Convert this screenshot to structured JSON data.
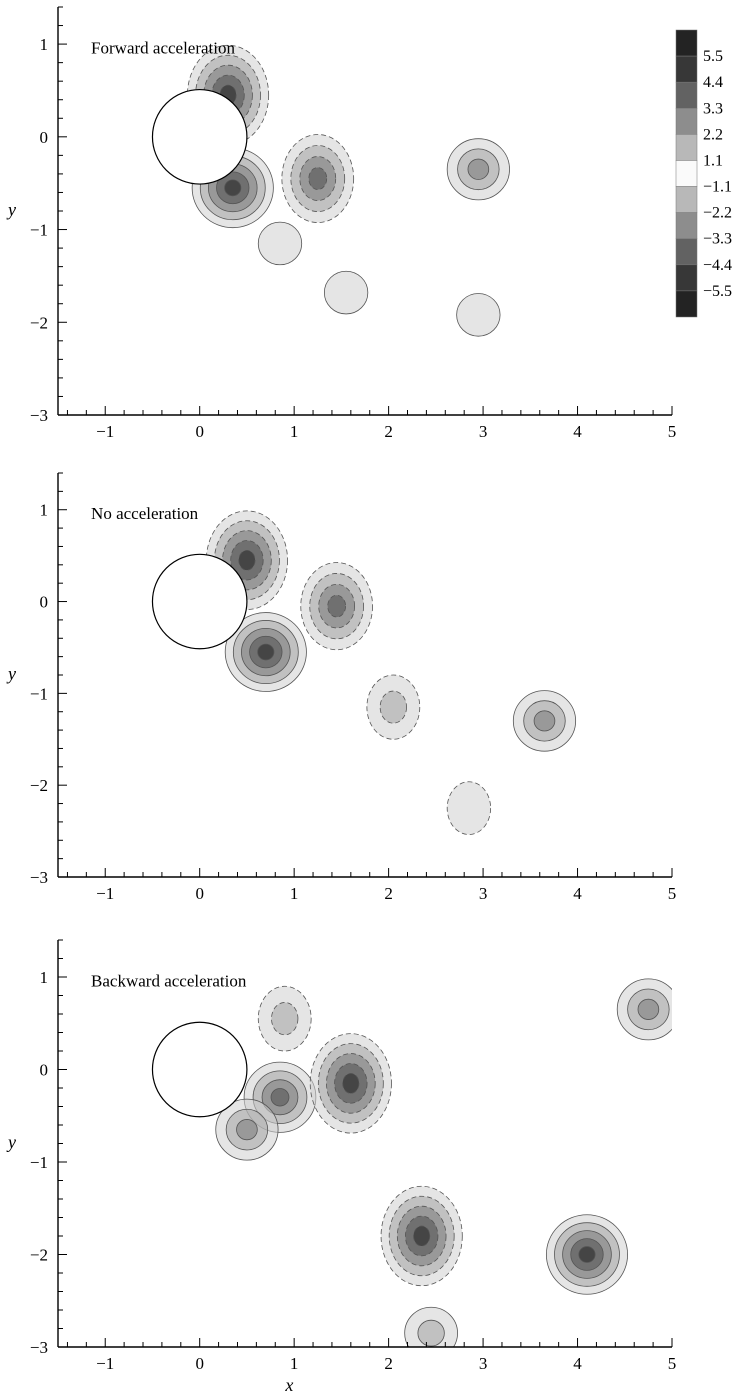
{
  "chart_data": [
    {
      "type": "contour",
      "title": "Forward acceleration",
      "xlabel": "",
      "ylabel": "y",
      "xlim": [
        -1.5,
        5
      ],
      "ylim": [
        -3,
        1.4
      ],
      "xticks": [
        "−1",
        "0",
        "1",
        "2",
        "3",
        "4",
        "5"
      ],
      "yticks": [
        "1",
        "0",
        "−1",
        "−2",
        "−3"
      ],
      "cylinder": {
        "center": [
          0,
          0
        ],
        "radius": 0.5
      },
      "vortices": [
        {
          "x": 0.3,
          "y": 0.45,
          "sign": -1,
          "peak": -5.5
        },
        {
          "x": 0.35,
          "y": -0.55,
          "sign": 1,
          "peak": 5.0
        },
        {
          "x": 1.25,
          "y": -0.45,
          "sign": -1,
          "peak": -4.4
        },
        {
          "x": 2.95,
          "y": -0.35,
          "sign": 1,
          "peak": 3.3
        },
        {
          "x": 1.55,
          "y": -1.68,
          "sign": 1,
          "peak": 1.1
        },
        {
          "x": 0.85,
          "y": -1.15,
          "sign": 1,
          "peak": 1.1
        },
        {
          "x": 2.95,
          "y": -1.92,
          "sign": 1,
          "peak": 1.1
        }
      ]
    },
    {
      "type": "contour",
      "title": "No acceleration",
      "xlabel": "",
      "ylabel": "y",
      "xlim": [
        -1.5,
        5
      ],
      "ylim": [
        -3,
        1.4
      ],
      "xticks": [
        "−1",
        "0",
        "1",
        "2",
        "3",
        "4",
        "5"
      ],
      "yticks": [
        "1",
        "0",
        "−1",
        "−2",
        "−3"
      ],
      "cylinder": {
        "center": [
          0,
          0
        ],
        "radius": 0.5
      },
      "vortices": [
        {
          "x": 0.5,
          "y": 0.45,
          "sign": -1,
          "peak": -5.5
        },
        {
          "x": 1.45,
          "y": -0.05,
          "sign": -1,
          "peak": -4.4
        },
        {
          "x": 0.7,
          "y": -0.55,
          "sign": 1,
          "peak": 5.5
        },
        {
          "x": 2.05,
          "y": -1.15,
          "sign": -1,
          "peak": -2.2
        },
        {
          "x": 3.65,
          "y": -1.3,
          "sign": 1,
          "peak": 3.3
        },
        {
          "x": 2.85,
          "y": -2.25,
          "sign": -1,
          "peak": -1.1
        }
      ]
    },
    {
      "type": "contour",
      "title": "Backward acceleration",
      "xlabel": "x",
      "ylabel": "y",
      "xlim": [
        -1.5,
        5
      ],
      "ylim": [
        -3,
        1.4
      ],
      "xticks": [
        "−1",
        "0",
        "1",
        "2",
        "3",
        "4",
        "5"
      ],
      "yticks": [
        "1",
        "0",
        "−1",
        "−2",
        "−3"
      ],
      "cylinder": {
        "center": [
          0,
          0
        ],
        "radius": 0.5
      },
      "vortices": [
        {
          "x": 0.85,
          "y": -0.3,
          "sign": 1,
          "peak": 4.4
        },
        {
          "x": 0.5,
          "y": -0.65,
          "sign": 1,
          "peak": 3.3
        },
        {
          "x": 0.9,
          "y": 0.55,
          "sign": -1,
          "peak": -2.2
        },
        {
          "x": 1.6,
          "y": -0.15,
          "sign": -1,
          "peak": -5.5
        },
        {
          "x": 2.35,
          "y": -1.8,
          "sign": -1,
          "peak": -5.5
        },
        {
          "x": 4.1,
          "y": -2.0,
          "sign": 1,
          "peak": 5.5
        },
        {
          "x": 4.75,
          "y": 0.65,
          "sign": 1,
          "peak": 3.3
        },
        {
          "x": 2.45,
          "y": -2.85,
          "sign": 1,
          "peak": 2.2
        }
      ]
    }
  ],
  "colorbar": {
    "levels": [
      "5.5",
      "4.4",
      "3.3",
      "2.2",
      "1.1",
      "−1.1",
      "−2.2",
      "−3.3",
      "−4.4",
      "−5.5"
    ],
    "values": [
      5.5,
      4.4,
      3.3,
      2.2,
      1.1,
      -1.1,
      -2.2,
      -3.3,
      -4.4,
      -5.5
    ]
  }
}
